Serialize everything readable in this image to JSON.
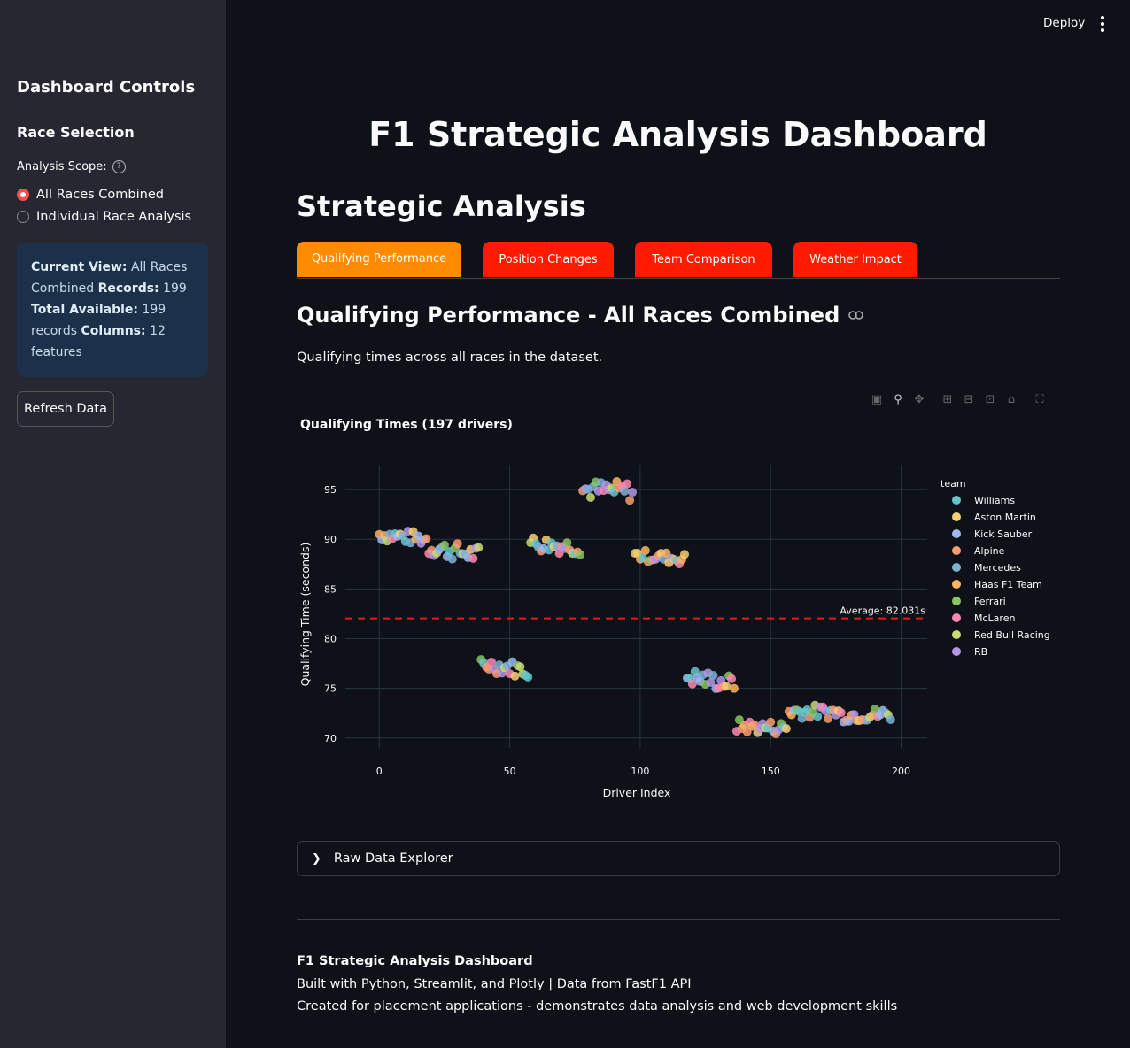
{
  "topbar": {
    "deploy_label": "Deploy"
  },
  "sidebar": {
    "title": "Dashboard Controls",
    "section": "Race Selection",
    "scope_label": "Analysis Scope:",
    "options": [
      "All Races Combined",
      "Individual Race Analysis"
    ],
    "selected_option": "All Races Combined",
    "info": {
      "current_view_label": "Current View:",
      "current_view_value": "All Races Combined",
      "records_label": "Records:",
      "records_value": "199",
      "total_label": "Total Available:",
      "total_value": "199 records",
      "columns_label": "Columns:",
      "columns_value": "12 features"
    },
    "refresh_label": "Refresh Data"
  },
  "main": {
    "title": "F1 Strategic Analysis Dashboard",
    "section_title": "Strategic Analysis",
    "tabs": [
      "Qualifying Performance",
      "Position Changes",
      "Team Comparison",
      "Weather Impact"
    ],
    "active_tab": "Qualifying Performance",
    "subheader": "Qualifying Performance - All Races Combined",
    "description": "Qualifying times across all races in the dataset.",
    "expander_label": "Raw Data Explorer"
  },
  "footer": {
    "title": "F1 Strategic Analysis Dashboard",
    "line1": "Built with Python, Streamlit, and Plotly | Data from FastF1 API",
    "line2": "Created for placement applications - demonstrates data analysis and web development skills"
  },
  "chart_data": {
    "type": "scatter",
    "title": "Qualifying Times (197 drivers)",
    "xlabel": "Driver Index",
    "ylabel": "Qualifying Time (seconds)",
    "xlim": [
      -13,
      210
    ],
    "ylim": [
      69,
      97.5
    ],
    "xticks": [
      0,
      50,
      100,
      150,
      200
    ],
    "yticks": [
      70,
      75,
      80,
      85,
      90,
      95
    ],
    "grid": true,
    "legend_title": "team",
    "legend_position": "right",
    "teams": [
      {
        "name": "Williams",
        "color": "#66c5cc"
      },
      {
        "name": "Aston Martin",
        "color": "#f6cf71"
      },
      {
        "name": "Kick Sauber",
        "color": "#9eb9f3"
      },
      {
        "name": "Alpine",
        "color": "#f89c74"
      },
      {
        "name": "Mercedes",
        "color": "#7eb0d5"
      },
      {
        "name": "Haas F1 Team",
        "color": "#fdb462"
      },
      {
        "name": "Ferrari",
        "color": "#87c55f"
      },
      {
        "name": "McLaren",
        "color": "#fe88b1"
      },
      {
        "name": "Red Bull Racing",
        "color": "#c9db74"
      },
      {
        "name": "RB",
        "color": "#b497e7"
      }
    ],
    "reference_line": {
      "y": 82.031,
      "label": "Average: 82.031s",
      "color": "#e31a1c"
    },
    "clusters": [
      {
        "x_start": 0,
        "x_end": 19,
        "y_start": 90.5,
        "y_end": 90.0,
        "spread": 0.7
      },
      {
        "x_start": 19,
        "x_end": 39,
        "y_start": 89.2,
        "y_end": 88.4,
        "spread": 0.9
      },
      {
        "x_start": 39,
        "x_end": 58,
        "y_start": 77.5,
        "y_end": 76.8,
        "spread": 0.8
      },
      {
        "x_start": 58,
        "x_end": 78,
        "y_start": 89.6,
        "y_end": 89.2,
        "spread": 0.8
      },
      {
        "x_start": 78,
        "x_end": 98,
        "y_start": 95.0,
        "y_end": 94.8,
        "spread": 1.0
      },
      {
        "x_start": 98,
        "x_end": 118,
        "y_start": 88.4,
        "y_end": 88.0,
        "spread": 0.6
      },
      {
        "x_start": 118,
        "x_end": 137,
        "y_start": 76.2,
        "y_end": 75.4,
        "spread": 0.9
      },
      {
        "x_start": 137,
        "x_end": 157,
        "y_start": 71.2,
        "y_end": 71.0,
        "spread": 0.7
      },
      {
        "x_start": 157,
        "x_end": 177,
        "y_start": 72.7,
        "y_end": 72.6,
        "spread": 0.7
      },
      {
        "x_start": 177,
        "x_end": 197,
        "y_start": 72.3,
        "y_end": 72.4,
        "spread": 0.7
      }
    ]
  }
}
